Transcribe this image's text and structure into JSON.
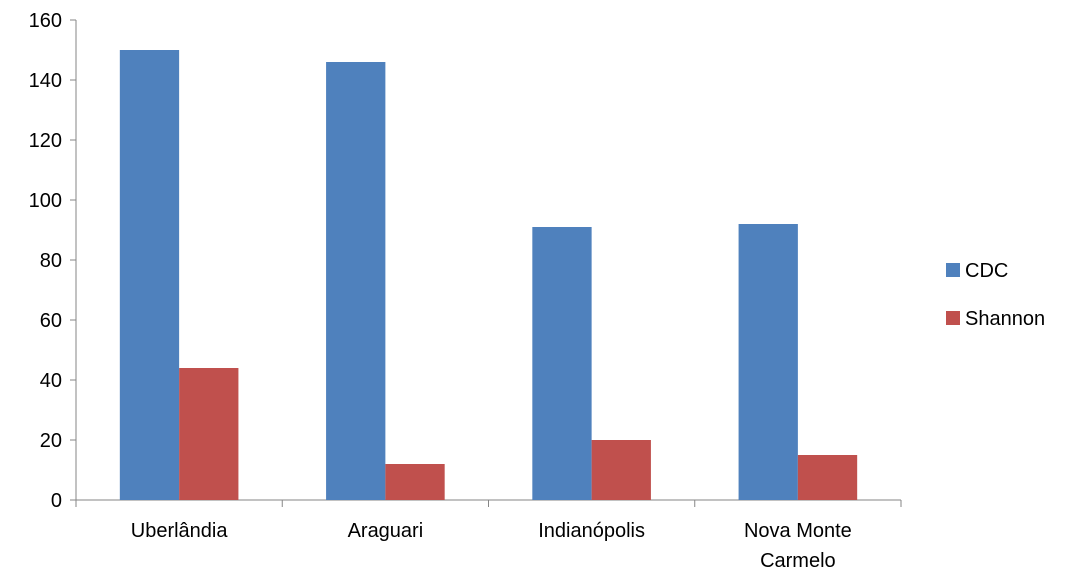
{
  "chart_data": {
    "type": "bar",
    "categories": [
      [
        "Uberlândia"
      ],
      [
        "Araguari"
      ],
      [
        "Indianópolis"
      ],
      [
        "Nova Monte",
        "Carmelo"
      ]
    ],
    "series": [
      {
        "name": "CDC",
        "values": [
          150,
          146,
          91,
          92
        ],
        "color": "#4F81BD"
      },
      {
        "name": "Shannon",
        "values": [
          44,
          12,
          20,
          15
        ],
        "color": "#C0504D"
      }
    ],
    "ylim": [
      0,
      160
    ],
    "yticks": [
      0,
      20,
      40,
      60,
      80,
      100,
      120,
      140,
      160
    ],
    "grid": false,
    "legend_position": "right",
    "title": "",
    "xlabel": "",
    "ylabel": ""
  }
}
